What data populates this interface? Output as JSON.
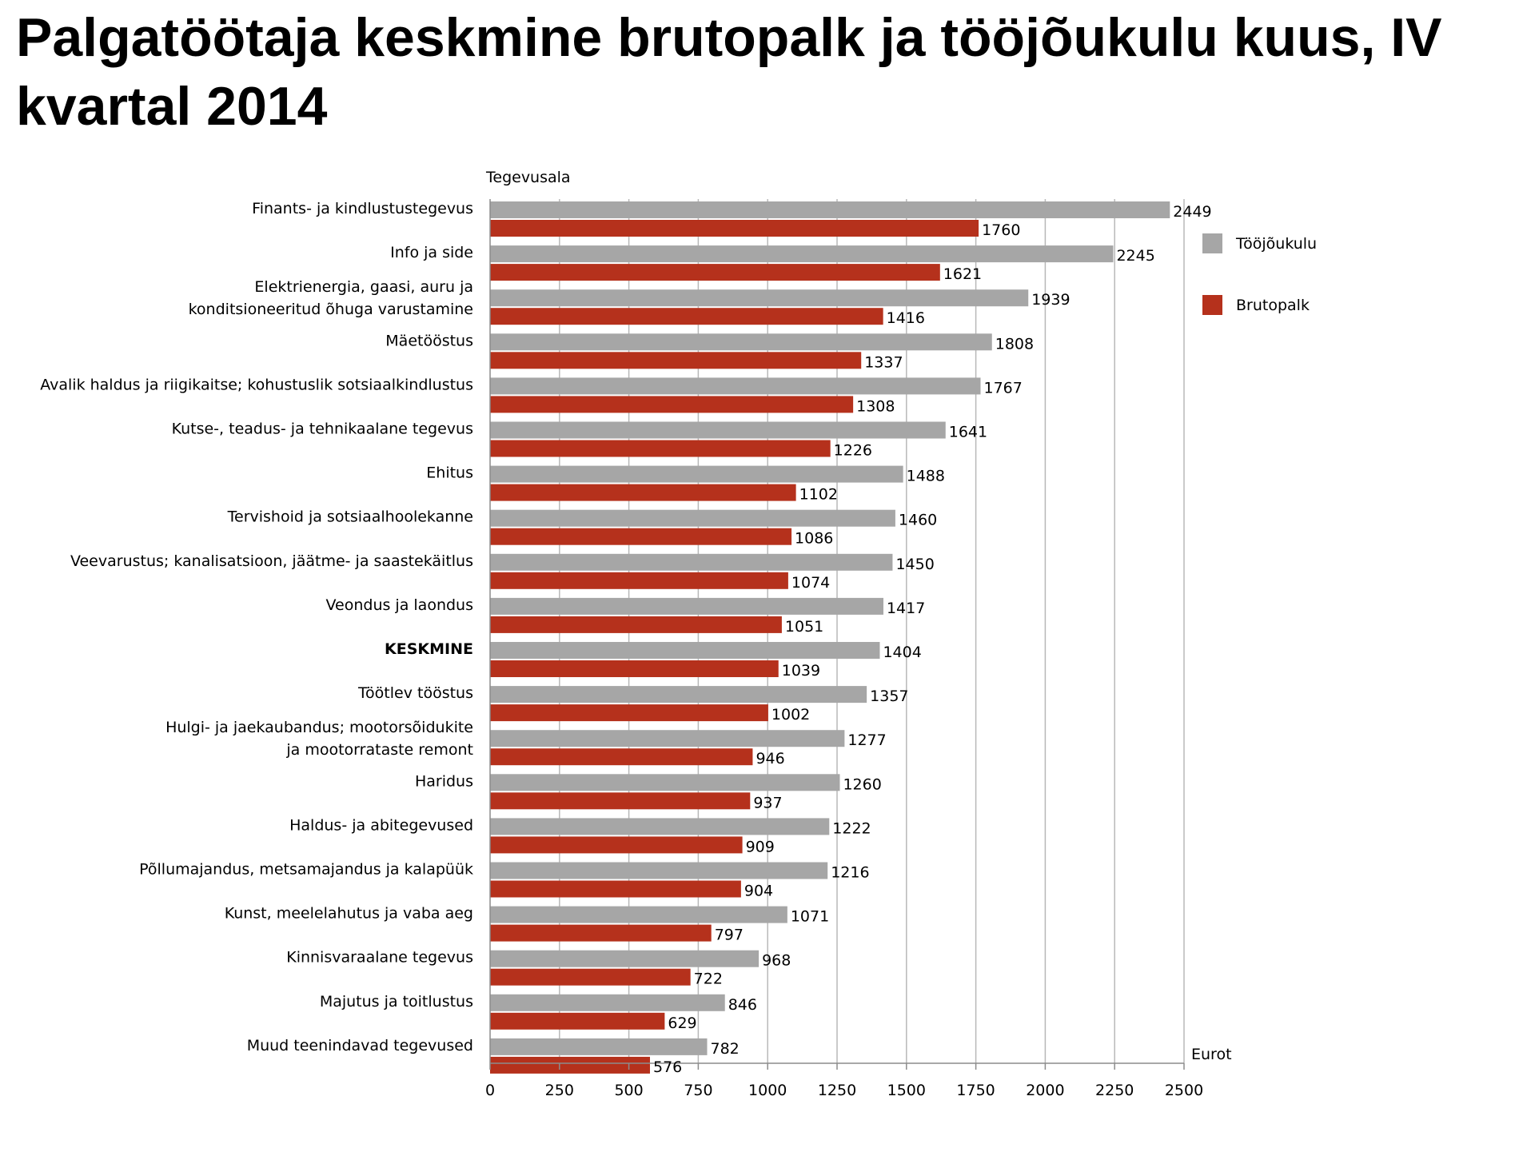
{
  "title": "Palgatöötaja keskmine brutopalk ja tööjõukulu kuus, IV kvartal 2014",
  "chart_data": {
    "type": "bar",
    "orientation": "horizontal",
    "ylabel": "Tegevusala",
    "xlabel": "Eurot",
    "xlim": [
      0,
      2500
    ],
    "xticks": [
      0,
      250,
      500,
      750,
      1000,
      1250,
      1500,
      1750,
      2000,
      2250,
      2500
    ],
    "grid": true,
    "legend_position": "right",
    "categories": [
      [
        "Finants- ja kindlustustegevus"
      ],
      [
        "Info ja side"
      ],
      [
        "Elektrienergia, gaasi, auru ja",
        "konditsioneeritud õhuga varustamine"
      ],
      [
        "Mäetööstus"
      ],
      [
        "Avalik haldus ja riigikaitse; kohustuslik sotsiaalkindlustus"
      ],
      [
        "Kutse-, teadus- ja tehnikaalane tegevus"
      ],
      [
        "Ehitus"
      ],
      [
        "Tervishoid ja sotsiaalhoolekanne"
      ],
      [
        "Veevarustus; kanalisatsioon, jäätme- ja saastekäitlus"
      ],
      [
        "Veondus ja laondus"
      ],
      [
        "KESKMINE"
      ],
      [
        "Töötlev tööstus"
      ],
      [
        "Hulgi- ja jaekaubandus; mootorsõidukite",
        "ja mootorrataste remont"
      ],
      [
        "Haridus"
      ],
      [
        "Haldus- ja abitegevused"
      ],
      [
        "Põllumajandus, metsamajandus ja kalapüük"
      ],
      [
        "Kunst, meelelahutus ja vaba aeg"
      ],
      [
        "Kinnisvaraalane tegevus"
      ],
      [
        "Majutus ja toitlustus"
      ],
      [
        "Muud teenindavad tegevused"
      ]
    ],
    "bold_categories": [
      "KESKMINE"
    ],
    "series": [
      {
        "name": "Tööjõukulu",
        "color": "#a6a6a6",
        "values": [
          2449,
          2245,
          1939,
          1808,
          1767,
          1641,
          1488,
          1460,
          1450,
          1417,
          1404,
          1357,
          1277,
          1260,
          1222,
          1216,
          1071,
          968,
          846,
          782
        ]
      },
      {
        "name": "Brutopalk",
        "color": "#b5311c",
        "values": [
          1760,
          1621,
          1416,
          1337,
          1308,
          1226,
          1102,
          1086,
          1074,
          1051,
          1039,
          1002,
          946,
          937,
          909,
          904,
          797,
          722,
          629,
          576
        ]
      }
    ]
  }
}
